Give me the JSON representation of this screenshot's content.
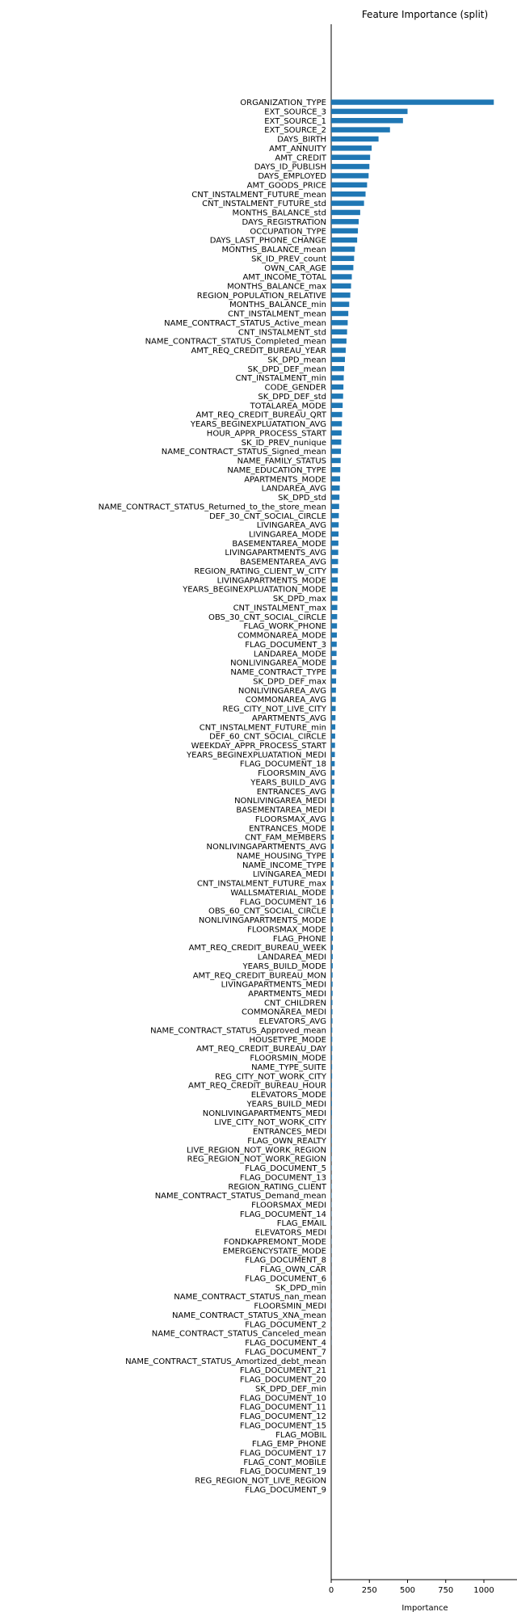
{
  "chart_data": {
    "type": "bar",
    "orientation": "horizontal",
    "title": "Feature Importance (split)",
    "xlabel": "Importance",
    "ylabel": "",
    "xlim": [
      0,
      1100
    ],
    "xticks": [
      0,
      250,
      500,
      750,
      1000
    ],
    "grid": false,
    "bar_color": "#1f77b4",
    "categories": [
      "ORGANIZATION_TYPE",
      "EXT_SOURCE_3",
      "EXT_SOURCE_1",
      "EXT_SOURCE_2",
      "DAYS_BIRTH",
      "AMT_ANNUITY",
      "AMT_CREDIT",
      "DAYS_ID_PUBLISH",
      "DAYS_EMPLOYED",
      "AMT_GOODS_PRICE",
      "CNT_INSTALMENT_FUTURE_mean",
      "CNT_INSTALMENT_FUTURE_std",
      "MONTHS_BALANCE_std",
      "DAYS_REGISTRATION",
      "OCCUPATION_TYPE",
      "DAYS_LAST_PHONE_CHANGE",
      "MONTHS_BALANCE_mean",
      "SK_ID_PREV_count",
      "OWN_CAR_AGE",
      "AMT_INCOME_TOTAL",
      "MONTHS_BALANCE_max",
      "REGION_POPULATION_RELATIVE",
      "MONTHS_BALANCE_min",
      "CNT_INSTALMENT_mean",
      "NAME_CONTRACT_STATUS_Active_mean",
      "CNT_INSTALMENT_std",
      "NAME_CONTRACT_STATUS_Completed_mean",
      "AMT_REQ_CREDIT_BUREAU_YEAR",
      "SK_DPD_mean",
      "SK_DPD_DEF_mean",
      "CNT_INSTALMENT_min",
      "CODE_GENDER",
      "SK_DPD_DEF_std",
      "TOTALAREA_MODE",
      "AMT_REQ_CREDIT_BUREAU_QRT",
      "YEARS_BEGINEXPLUATATION_AVG",
      "HOUR_APPR_PROCESS_START",
      "SK_ID_PREV_nunique",
      "NAME_CONTRACT_STATUS_Signed_mean",
      "NAME_FAMILY_STATUS",
      "NAME_EDUCATION_TYPE",
      "APARTMENTS_MODE",
      "LANDAREA_AVG",
      "SK_DPD_std",
      "NAME_CONTRACT_STATUS_Returned_to_the_store_mean",
      "DEF_30_CNT_SOCIAL_CIRCLE",
      "LIVINGAREA_AVG",
      "LIVINGAREA_MODE",
      "BASEMENTAREA_MODE",
      "LIVINGAPARTMENTS_AVG",
      "BASEMENTAREA_AVG",
      "REGION_RATING_CLIENT_W_CITY",
      "LIVINGAPARTMENTS_MODE",
      "YEARS_BEGINEXPLUATATION_MODE",
      "SK_DPD_max",
      "CNT_INSTALMENT_max",
      "OBS_30_CNT_SOCIAL_CIRCLE",
      "FLAG_WORK_PHONE",
      "COMMONAREA_MODE",
      "FLAG_DOCUMENT_3",
      "LANDAREA_MODE",
      "NONLIVINGAREA_MODE",
      "NAME_CONTRACT_TYPE",
      "SK_DPD_DEF_max",
      "NONLIVINGAREA_AVG",
      "COMMONAREA_AVG",
      "REG_CITY_NOT_LIVE_CITY",
      "APARTMENTS_AVG",
      "CNT_INSTALMENT_FUTURE_min",
      "DEF_60_CNT_SOCIAL_CIRCLE",
      "WEEKDAY_APPR_PROCESS_START",
      "YEARS_BEGINEXPLUATATION_MEDI",
      "FLAG_DOCUMENT_18",
      "FLOORSMIN_AVG",
      "YEARS_BUILD_AVG",
      "ENTRANCES_AVG",
      "NONLIVINGAREA_MEDI",
      "BASEMENTAREA_MEDI",
      "FLOORSMAX_AVG",
      "ENTRANCES_MODE",
      "CNT_FAM_MEMBERS",
      "NONLIVINGAPARTMENTS_AVG",
      "NAME_HOUSING_TYPE",
      "NAME_INCOME_TYPE",
      "LIVINGAREA_MEDI",
      "CNT_INSTALMENT_FUTURE_max",
      "WALLSMATERIAL_MODE",
      "FLAG_DOCUMENT_16",
      "OBS_60_CNT_SOCIAL_CIRCLE",
      "NONLIVINGAPARTMENTS_MODE",
      "FLOORSMAX_MODE",
      "FLAG_PHONE",
      "AMT_REQ_CREDIT_BUREAU_WEEK",
      "LANDAREA_MEDI",
      "YEARS_BUILD_MODE",
      "AMT_REQ_CREDIT_BUREAU_MON",
      "LIVINGAPARTMENTS_MEDI",
      "APARTMENTS_MEDI",
      "CNT_CHILDREN",
      "COMMONAREA_MEDI",
      "ELEVATORS_AVG",
      "NAME_CONTRACT_STATUS_Approved_mean",
      "HOUSETYPE_MODE",
      "AMT_REQ_CREDIT_BUREAU_DAY",
      "FLOORSMIN_MODE",
      "NAME_TYPE_SUITE",
      "REG_CITY_NOT_WORK_CITY",
      "AMT_REQ_CREDIT_BUREAU_HOUR",
      "ELEVATORS_MODE",
      "YEARS_BUILD_MEDI",
      "NONLIVINGAPARTMENTS_MEDI",
      "LIVE_CITY_NOT_WORK_CITY",
      "ENTRANCES_MEDI",
      "FLAG_OWN_REALTY",
      "LIVE_REGION_NOT_WORK_REGION",
      "REG_REGION_NOT_WORK_REGION",
      "FLAG_DOCUMENT_5",
      "FLAG_DOCUMENT_13",
      "REGION_RATING_CLIENT",
      "NAME_CONTRACT_STATUS_Demand_mean",
      "FLOORSMAX_MEDI",
      "FLAG_DOCUMENT_14",
      "FLAG_EMAIL",
      "ELEVATORS_MEDI",
      "FONDKAPREMONT_MODE",
      "EMERGENCYSTATE_MODE",
      "FLAG_DOCUMENT_8",
      "FLAG_OWN_CAR",
      "FLAG_DOCUMENT_6",
      "SK_DPD_min",
      "NAME_CONTRACT_STATUS_nan_mean",
      "FLOORSMIN_MEDI",
      "NAME_CONTRACT_STATUS_XNA_mean",
      "FLAG_DOCUMENT_2",
      "NAME_CONTRACT_STATUS_Canceled_mean",
      "FLAG_DOCUMENT_4",
      "FLAG_DOCUMENT_7",
      "NAME_CONTRACT_STATUS_Amortized_debt_mean",
      "FLAG_DOCUMENT_21",
      "FLAG_DOCUMENT_20",
      "SK_DPD_DEF_min",
      "FLAG_DOCUMENT_10",
      "FLAG_DOCUMENT_11",
      "FLAG_DOCUMENT_12",
      "FLAG_DOCUMENT_15",
      "FLAG_MOBIL",
      "FLAG_EMP_PHONE",
      "FLAG_DOCUMENT_17",
      "FLAG_CONT_MOBILE",
      "FLAG_DOCUMENT_19",
      "REG_REGION_NOT_LIVE_REGION",
      "FLAG_DOCUMENT_9"
    ],
    "values": [
      1065,
      500,
      470,
      385,
      310,
      265,
      255,
      250,
      245,
      235,
      225,
      215,
      190,
      180,
      175,
      170,
      155,
      150,
      145,
      135,
      130,
      125,
      118,
      112,
      108,
      104,
      100,
      95,
      90,
      85,
      82,
      80,
      78,
      75,
      72,
      70,
      68,
      66,
      64,
      62,
      60,
      58,
      56,
      54,
      52,
      50,
      49,
      48,
      47,
      46,
      45,
      44,
      43,
      42,
      41,
      40,
      39,
      38,
      37,
      36,
      35,
      34,
      33,
      32,
      31,
      30,
      29,
      28,
      27,
      26,
      25,
      24,
      23,
      22,
      21,
      20,
      19,
      18,
      18,
      17,
      17,
      16,
      16,
      15,
      15,
      14,
      14,
      13,
      13,
      12,
      12,
      11,
      11,
      10,
      10,
      9,
      9,
      9,
      8,
      8,
      8,
      7,
      7,
      7,
      6,
      6,
      6,
      5,
      5,
      5,
      5,
      4,
      4,
      4,
      4,
      3,
      3,
      3,
      3,
      3,
      2,
      2,
      2,
      2,
      2,
      2,
      2,
      1,
      1,
      1,
      1,
      1,
      1,
      1,
      1,
      1,
      0,
      0,
      0,
      0,
      0,
      0,
      0,
      0,
      0,
      0,
      0,
      0,
      0,
      0,
      0,
      0
    ]
  }
}
